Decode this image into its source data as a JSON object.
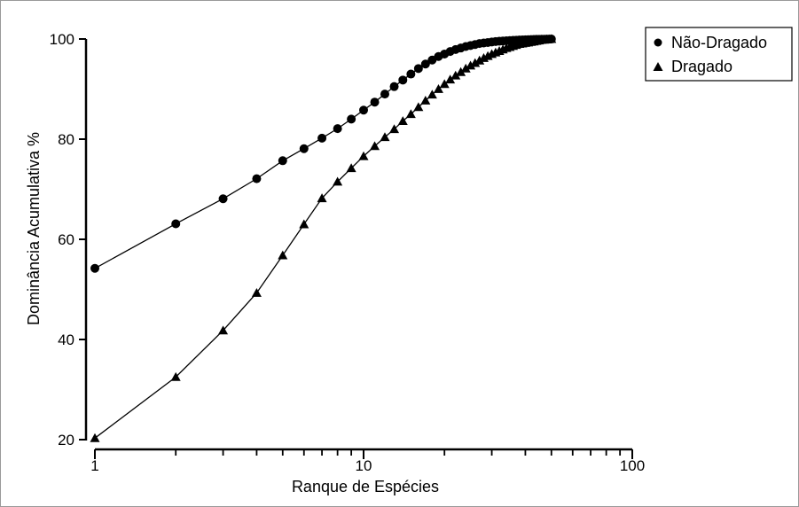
{
  "chart_data": {
    "type": "line",
    "xlabel": "Ranque de Espécies",
    "ylabel": "Dominância Acumulativa %",
    "xscale": "log",
    "xlim": [
      1,
      100
    ],
    "ylim": [
      20,
      100
    ],
    "yticks": [
      20,
      40,
      60,
      80,
      100
    ],
    "xticks": [
      1,
      10,
      100
    ],
    "grid": false,
    "legend_position": "top-right",
    "series": [
      {
        "name": "Não-Dragado",
        "marker": "circle",
        "x": [
          1,
          2,
          3,
          4,
          5,
          6,
          7,
          8,
          9,
          10,
          11,
          12,
          13,
          14,
          15,
          16,
          17,
          18,
          19,
          20,
          21,
          22,
          23,
          24,
          25,
          26,
          27,
          28,
          29,
          30,
          31,
          32,
          33,
          34,
          35,
          36,
          37,
          38,
          39,
          40,
          41,
          42,
          43,
          44,
          45,
          46,
          47,
          48,
          49,
          50
        ],
        "y": [
          54.2,
          63.1,
          68.1,
          72.1,
          75.7,
          78.1,
          80.2,
          82.1,
          84.0,
          85.8,
          87.4,
          89.0,
          90.5,
          91.8,
          93.0,
          94.1,
          95.0,
          95.8,
          96.5,
          97.0,
          97.5,
          97.9,
          98.2,
          98.5,
          98.7,
          98.9,
          99.1,
          99.2,
          99.3,
          99.4,
          99.5,
          99.55,
          99.6,
          99.65,
          99.7,
          99.73,
          99.76,
          99.79,
          99.82,
          99.85,
          99.87,
          99.89,
          99.91,
          99.93,
          99.94,
          99.95,
          99.96,
          99.97,
          99.98,
          100.0
        ]
      },
      {
        "name": "Dragado",
        "marker": "triangle",
        "x": [
          1,
          2,
          3,
          4,
          5,
          6,
          7,
          8,
          9,
          10,
          11,
          12,
          13,
          14,
          15,
          16,
          17,
          18,
          19,
          20,
          21,
          22,
          23,
          24,
          25,
          26,
          27,
          28,
          29,
          30,
          31,
          32,
          33,
          34,
          35,
          36,
          37,
          38,
          39,
          40,
          41,
          42,
          43,
          44,
          45,
          46,
          47,
          48,
          49,
          50
        ],
        "y": [
          20.3,
          32.5,
          41.8,
          49.3,
          56.8,
          63.0,
          68.2,
          71.5,
          74.2,
          76.6,
          78.6,
          80.4,
          82.0,
          83.6,
          85.0,
          86.4,
          87.7,
          88.9,
          90.0,
          91.0,
          91.9,
          92.7,
          93.4,
          94.1,
          94.7,
          95.2,
          95.7,
          96.2,
          96.6,
          97.0,
          97.3,
          97.6,
          97.9,
          98.2,
          98.4,
          98.6,
          98.8,
          99.0,
          99.1,
          99.2,
          99.3,
          99.4,
          99.5,
          99.6,
          99.7,
          99.8,
          99.85,
          99.9,
          99.95,
          100.0
        ]
      }
    ]
  }
}
